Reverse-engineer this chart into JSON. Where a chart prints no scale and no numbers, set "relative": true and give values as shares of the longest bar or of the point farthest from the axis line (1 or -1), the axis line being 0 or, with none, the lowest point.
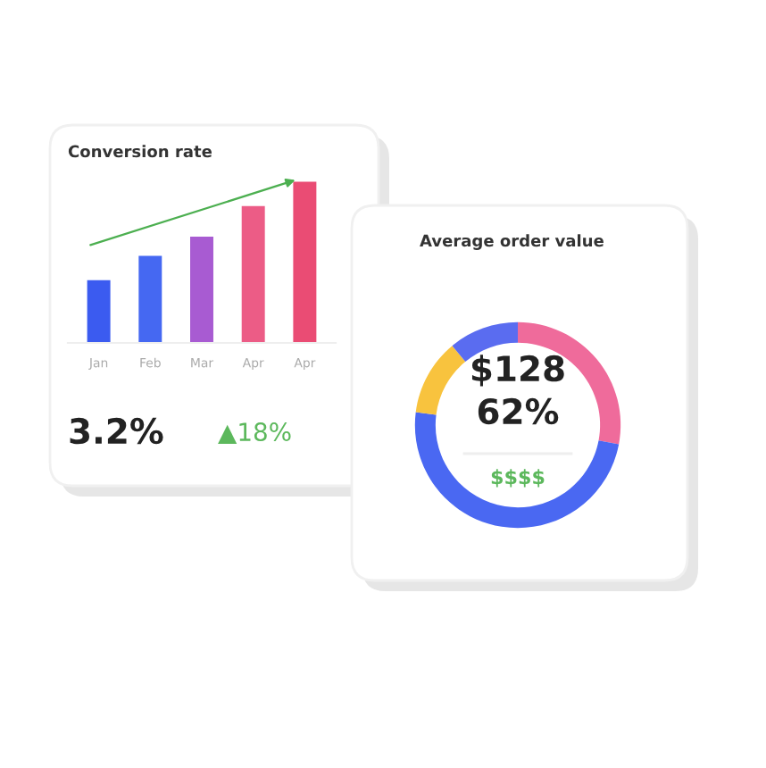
{
  "chart_data": [
    {
      "type": "bar",
      "title": "Conversion rate",
      "categories": [
        "Jan",
        "Feb",
        "Mar",
        "Apr",
        "Apr"
      ],
      "values": [
        0.39,
        0.54,
        0.66,
        0.85,
        1.0
      ],
      "colors": [
        "#3b5bf0",
        "#4568f2",
        "#a85bd2",
        "#ec5c86",
        "#ea4c74"
      ],
      "relative": true,
      "annotations": [
        "3.2%",
        "▲18%"
      ]
    },
    {
      "type": "donut",
      "title": "Average order value",
      "categories": [
        null,
        null,
        null,
        null
      ],
      "values": [
        28,
        49,
        12,
        11
      ],
      "colors": [
        "#ef6b9b",
        "#4a68f2",
        "#f8c33e",
        "#5a6cf0"
      ],
      "annotations": [
        "$128",
        "62%",
        "$$$$"
      ]
    }
  ]
}
